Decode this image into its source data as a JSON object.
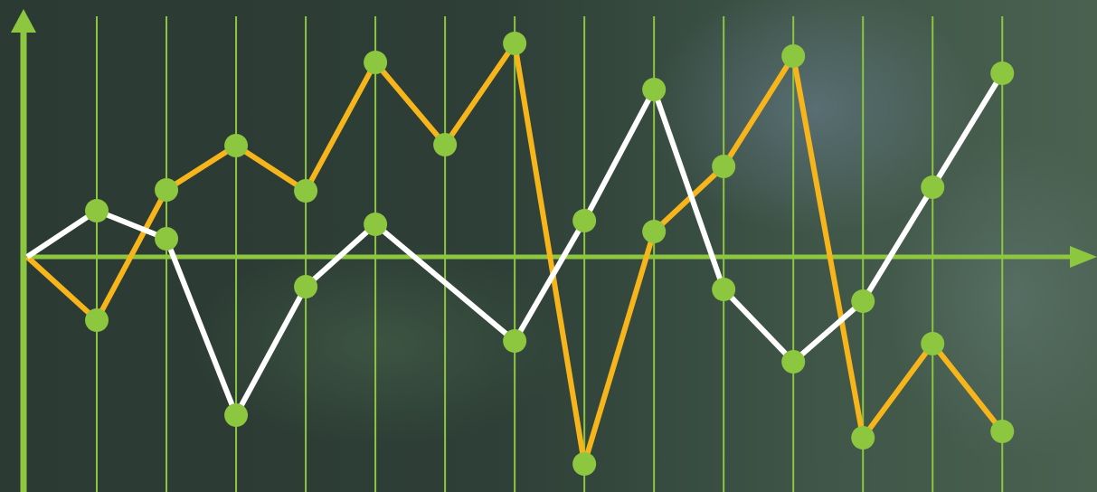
{
  "chart_data": {
    "type": "line",
    "xlim": [
      0,
      15.36
    ],
    "ylim": [
      -26,
      27.4
    ],
    "xticks": [
      1,
      2,
      3,
      4,
      5,
      6,
      7,
      8,
      9,
      10,
      11,
      12,
      13,
      14
    ],
    "grid": true,
    "axis_color": "#8dc63f",
    "marker_color": "#8dc63f",
    "series": [
      {
        "color": "#f7b51c",
        "x": [
          0,
          1,
          2,
          3,
          4,
          5,
          6,
          7,
          8,
          9,
          10,
          11,
          12,
          13,
          14
        ],
        "values": [
          0,
          -7,
          7.4,
          12.3,
          7.3,
          21.5,
          12.4,
          23.6,
          -22.9,
          2.8,
          10,
          22.2,
          -20,
          -9.6,
          -19.3
        ]
      },
      {
        "color": "#ffffff",
        "x": [
          0,
          1,
          2,
          3,
          4,
          5,
          7,
          8,
          9,
          10,
          11,
          12,
          13,
          14
        ],
        "values": [
          0,
          5.1,
          2,
          -17.5,
          -3.3,
          3.6,
          -9.3,
          4,
          18.5,
          -3.6,
          -11.6,
          -4.9,
          7.7,
          20.3
        ]
      }
    ]
  }
}
